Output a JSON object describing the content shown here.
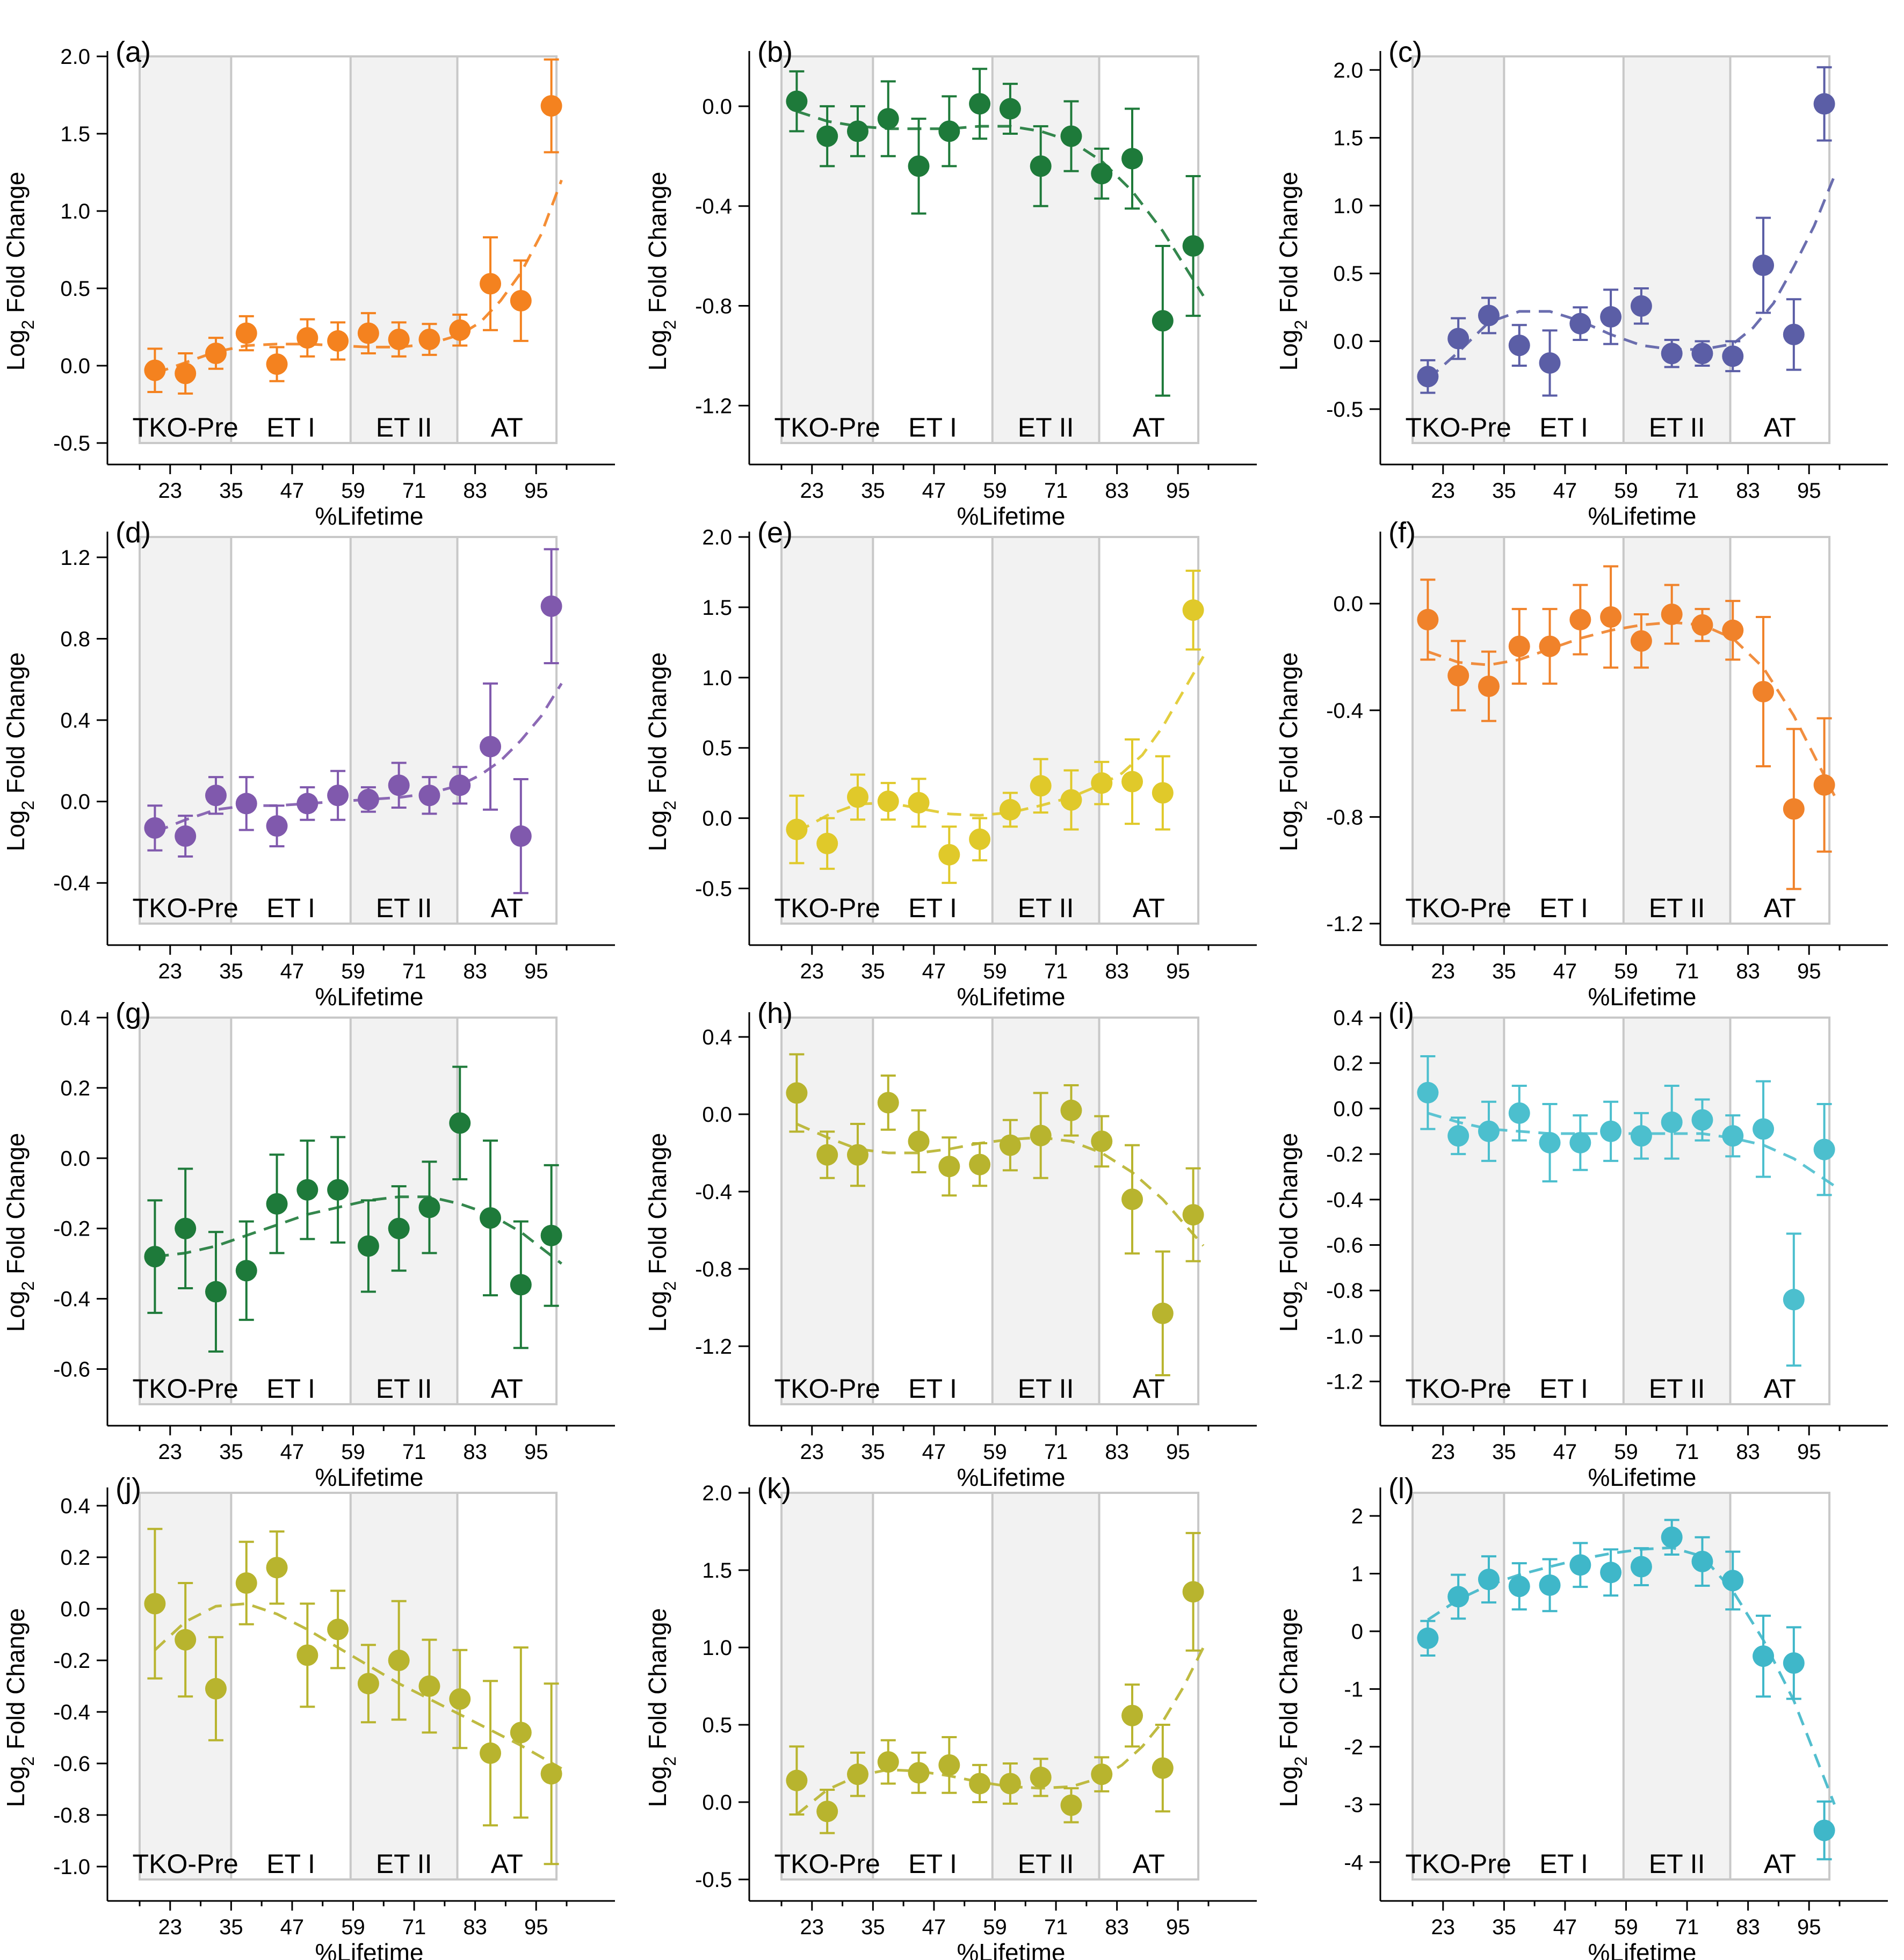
{
  "figure": {
    "x_axis_label": "%Lifetime",
    "y_axis_label_main": "Log",
    "y_axis_label_sub": "2",
    "y_axis_label_rest": " Fold Change",
    "x_ticks": [
      "23",
      "35",
      "47",
      "59",
      "71",
      "83",
      "95"
    ],
    "stage_labels": [
      "TKO-Pre",
      "ET I",
      "ET II",
      "AT"
    ],
    "shading_color": "#f2f2f2",
    "boundary_color": "#c8c8c8"
  },
  "chart_data": [
    {
      "panel": "(a)",
      "type": "scatter",
      "color": "#f4821f",
      "point_color": "#f4821f",
      "xlabel": "%Lifetime",
      "ylabel": "Log2 Fold Change",
      "ylim": [
        -0.5,
        2.0
      ],
      "yticks": [
        "-0.5",
        "0.0",
        "0.5",
        "1.0",
        "1.5",
        "2.0"
      ],
      "ytick_values": [
        -0.5,
        0,
        0.5,
        1.0,
        1.5,
        2.0
      ],
      "x": [
        20,
        26,
        32,
        38,
        44,
        50,
        56,
        62,
        68,
        74,
        80,
        86,
        92,
        98
      ],
      "y": [
        -0.03,
        -0.05,
        0.08,
        0.21,
        0.01,
        0.18,
        0.16,
        0.21,
        0.17,
        0.17,
        0.23,
        0.53,
        0.42,
        1.68
      ],
      "err": [
        0.14,
        0.13,
        0.1,
        0.11,
        0.11,
        0.12,
        0.12,
        0.13,
        0.11,
        0.1,
        0.1,
        0.3,
        0.26,
        0.3
      ],
      "fit_x": [
        20,
        26,
        32,
        38,
        44,
        50,
        56,
        62,
        68,
        74,
        80,
        84,
        88,
        92,
        96,
        100
      ],
      "fit_y": [
        -0.05,
        0.02,
        0.09,
        0.13,
        0.14,
        0.14,
        0.13,
        0.12,
        0.12,
        0.14,
        0.2,
        0.28,
        0.42,
        0.6,
        0.85,
        1.2
      ]
    },
    {
      "panel": "(b)",
      "type": "scatter",
      "color": "#1e7a3a",
      "point_color": "#1e7a3a",
      "xlabel": "%Lifetime",
      "ylabel": "Log2 Fold Change",
      "ylim": [
        -1.35,
        0.2
      ],
      "yticks": [
        "-1.2",
        "-0.8",
        "-0.4",
        "0.0"
      ],
      "ytick_values": [
        -1.2,
        -0.8,
        -0.4,
        0
      ],
      "x": [
        20,
        26,
        32,
        38,
        44,
        50,
        56,
        62,
        68,
        74,
        80,
        86,
        92,
        98
      ],
      "y": [
        0.02,
        -0.12,
        -0.1,
        -0.05,
        -0.24,
        -0.1,
        0.01,
        -0.01,
        -0.24,
        -0.12,
        -0.27,
        -0.21,
        -0.86,
        -0.56
      ],
      "err": [
        0.12,
        0.12,
        0.1,
        0.15,
        0.19,
        0.14,
        0.14,
        0.1,
        0.16,
        0.14,
        0.1,
        0.2,
        0.3,
        0.28
      ],
      "fit_x": [
        20,
        26,
        32,
        38,
        44,
        50,
        56,
        62,
        68,
        74,
        80,
        86,
        92,
        100
      ],
      "fit_y": [
        -0.02,
        -0.06,
        -0.08,
        -0.09,
        -0.09,
        -0.09,
        -0.08,
        -0.08,
        -0.1,
        -0.14,
        -0.22,
        -0.34,
        -0.5,
        -0.76
      ]
    },
    {
      "panel": "(c)",
      "type": "scatter",
      "color": "#5b5ea6",
      "point_color": "#5b5ea6",
      "xlabel": "%Lifetime",
      "ylabel": "Log2 Fold Change",
      "ylim": [
        -0.75,
        2.1
      ],
      "yticks": [
        "-0.5",
        "0.0",
        "0.5",
        "1.0",
        "1.5",
        "2.0"
      ],
      "ytick_values": [
        -0.5,
        0,
        0.5,
        1.0,
        1.5,
        2.0
      ],
      "x": [
        20,
        26,
        32,
        38,
        44,
        50,
        56,
        62,
        68,
        74,
        80,
        86,
        92,
        98
      ],
      "y": [
        -0.26,
        0.02,
        0.19,
        -0.03,
        -0.16,
        0.13,
        0.18,
        0.26,
        -0.09,
        -0.09,
        -0.11,
        0.56,
        0.05,
        1.75
      ],
      "err": [
        0.12,
        0.15,
        0.13,
        0.15,
        0.24,
        0.12,
        0.2,
        0.13,
        0.1,
        0.09,
        0.11,
        0.35,
        0.26,
        0.27
      ],
      "fit_x": [
        20,
        26,
        32,
        38,
        44,
        50,
        56,
        62,
        68,
        74,
        80,
        84,
        88,
        92,
        96,
        100
      ],
      "fit_y": [
        -0.28,
        -0.08,
        0.14,
        0.22,
        0.22,
        0.15,
        0.05,
        -0.03,
        -0.06,
        -0.06,
        -0.02,
        0.1,
        0.28,
        0.55,
        0.85,
        1.22
      ]
    },
    {
      "panel": "(d)",
      "type": "scatter",
      "color": "#8059ad",
      "point_color": "#8059ad",
      "xlabel": "%Lifetime",
      "ylabel": "Log2 Fold Change",
      "ylim": [
        -0.6,
        1.3
      ],
      "yticks": [
        "-0.4",
        "0.0",
        "0.4",
        "0.8",
        "1.2"
      ],
      "ytick_values": [
        -0.4,
        0,
        0.4,
        0.8,
        1.2
      ],
      "x": [
        20,
        26,
        32,
        38,
        44,
        50,
        56,
        62,
        68,
        74,
        80,
        86,
        92,
        98
      ],
      "y": [
        -0.13,
        -0.17,
        0.03,
        -0.01,
        -0.12,
        -0.01,
        0.03,
        0.01,
        0.08,
        0.03,
        0.08,
        0.27,
        -0.17,
        0.96
      ],
      "err": [
        0.11,
        0.1,
        0.09,
        0.13,
        0.1,
        0.08,
        0.12,
        0.06,
        0.11,
        0.09,
        0.09,
        0.31,
        0.28,
        0.28
      ],
      "fit_x": [
        20,
        26,
        32,
        38,
        44,
        50,
        56,
        62,
        68,
        74,
        80,
        84,
        88,
        92,
        96,
        100
      ],
      "fit_y": [
        -0.15,
        -0.09,
        -0.04,
        -0.02,
        -0.02,
        -0.01,
        0.0,
        0.01,
        0.02,
        0.04,
        0.08,
        0.13,
        0.2,
        0.3,
        0.42,
        0.58
      ]
    },
    {
      "panel": "(e)",
      "type": "scatter",
      "color": "#e0c92a",
      "point_color": "#e0c92a",
      "xlabel": "%Lifetime",
      "ylabel": "Log2 Fold Change",
      "ylim": [
        -0.75,
        2.0
      ],
      "yticks": [
        "-0.5",
        "0.0",
        "0.5",
        "1.0",
        "1.5",
        "2.0"
      ],
      "ytick_values": [
        -0.5,
        0,
        0.5,
        1.0,
        1.5,
        2.0
      ],
      "x": [
        20,
        26,
        32,
        38,
        44,
        50,
        56,
        62,
        68,
        74,
        80,
        86,
        92,
        98
      ],
      "y": [
        -0.08,
        -0.18,
        0.15,
        0.12,
        0.11,
        -0.26,
        -0.15,
        0.06,
        0.23,
        0.13,
        0.25,
        0.26,
        0.18,
        1.48
      ],
      "err": [
        0.24,
        0.18,
        0.16,
        0.13,
        0.17,
        0.2,
        0.15,
        0.12,
        0.19,
        0.21,
        0.15,
        0.3,
        0.26,
        0.28
      ],
      "fit_x": [
        20,
        26,
        32,
        38,
        44,
        50,
        56,
        62,
        68,
        74,
        80,
        84,
        88,
        92,
        96,
        100
      ],
      "fit_y": [
        -0.1,
        0.02,
        0.1,
        0.11,
        0.07,
        0.03,
        0.02,
        0.04,
        0.09,
        0.15,
        0.24,
        0.32,
        0.45,
        0.65,
        0.9,
        1.15
      ]
    },
    {
      "panel": "(f)",
      "type": "scatter",
      "color": "#f0822a",
      "point_color": "#f0822a",
      "xlabel": "%Lifetime",
      "ylabel": "Log2 Fold Change",
      "ylim": [
        -1.2,
        0.25
      ],
      "yticks": [
        "-1.2",
        "-0.8",
        "-0.4",
        "0.0"
      ],
      "ytick_values": [
        -1.2,
        -0.8,
        -0.4,
        0
      ],
      "x": [
        20,
        26,
        32,
        38,
        44,
        50,
        56,
        62,
        68,
        74,
        80,
        86,
        92,
        98
      ],
      "y": [
        -0.06,
        -0.27,
        -0.31,
        -0.16,
        -0.16,
        -0.06,
        -0.05,
        -0.14,
        -0.04,
        -0.08,
        -0.1,
        -0.33,
        -0.77,
        -0.68
      ],
      "err": [
        0.15,
        0.13,
        0.13,
        0.14,
        0.14,
        0.13,
        0.19,
        0.1,
        0.11,
        0.06,
        0.11,
        0.28,
        0.3,
        0.25
      ],
      "fit_x": [
        20,
        26,
        32,
        38,
        44,
        50,
        56,
        62,
        68,
        74,
        80,
        86,
        92,
        100
      ],
      "fit_y": [
        -0.18,
        -0.22,
        -0.23,
        -0.21,
        -0.17,
        -0.13,
        -0.1,
        -0.08,
        -0.07,
        -0.08,
        -0.13,
        -0.24,
        -0.42,
        -0.72
      ]
    },
    {
      "panel": "(g)",
      "type": "scatter",
      "color": "#1e7a3a",
      "point_color": "#1e7a3a",
      "xlabel": "%Lifetime",
      "ylabel": "Log2 Fold Change",
      "ylim": [
        -0.7,
        0.4
      ],
      "yticks": [
        "-0.6",
        "-0.4",
        "-0.2",
        "0.0",
        "0.2",
        "0.4"
      ],
      "ytick_values": [
        -0.6,
        -0.4,
        -0.2,
        0,
        0.2,
        0.4
      ],
      "x": [
        20,
        26,
        32,
        38,
        44,
        50,
        56,
        62,
        68,
        74,
        80,
        86,
        92,
        98
      ],
      "y": [
        -0.28,
        -0.2,
        -0.38,
        -0.32,
        -0.13,
        -0.09,
        -0.09,
        -0.25,
        -0.2,
        -0.14,
        0.1,
        -0.17,
        -0.36,
        -0.22
      ],
      "err": [
        0.16,
        0.17,
        0.17,
        0.14,
        0.14,
        0.14,
        0.15,
        0.13,
        0.12,
        0.13,
        0.16,
        0.22,
        0.18,
        0.2
      ],
      "fit_x": [
        20,
        26,
        32,
        38,
        44,
        50,
        56,
        62,
        68,
        74,
        80,
        86,
        92,
        100
      ],
      "fit_y": [
        -0.28,
        -0.27,
        -0.25,
        -0.22,
        -0.19,
        -0.16,
        -0.14,
        -0.12,
        -0.11,
        -0.11,
        -0.13,
        -0.16,
        -0.21,
        -0.3
      ]
    },
    {
      "panel": "(h)",
      "type": "scatter",
      "color": "#b8b42e",
      "point_color": "#b8b42e",
      "xlabel": "%Lifetime",
      "ylabel": "Log2 Fold Change",
      "ylim": [
        -1.5,
        0.5
      ],
      "yticks": [
        "-1.2",
        "-0.8",
        "-0.4",
        "0.0",
        "0.4"
      ],
      "ytick_values": [
        -1.2,
        -0.8,
        -0.4,
        0,
        0.4
      ],
      "x": [
        20,
        26,
        32,
        38,
        44,
        50,
        56,
        62,
        68,
        74,
        80,
        86,
        92,
        98
      ],
      "y": [
        0.11,
        -0.21,
        -0.21,
        0.06,
        -0.14,
        -0.27,
        -0.26,
        -0.16,
        -0.11,
        0.02,
        -0.14,
        -0.44,
        -1.03,
        -0.52
      ],
      "err": [
        0.2,
        0.12,
        0.16,
        0.14,
        0.16,
        0.15,
        0.11,
        0.13,
        0.22,
        0.13,
        0.13,
        0.28,
        0.32,
        0.24
      ],
      "fit_x": [
        20,
        26,
        32,
        38,
        44,
        50,
        56,
        62,
        68,
        74,
        80,
        86,
        92,
        100
      ],
      "fit_y": [
        -0.05,
        -0.12,
        -0.18,
        -0.2,
        -0.2,
        -0.18,
        -0.15,
        -0.13,
        -0.12,
        -0.14,
        -0.2,
        -0.3,
        -0.44,
        -0.68
      ]
    },
    {
      "panel": "(i)",
      "type": "scatter",
      "color": "#4cbfce",
      "point_color": "#4cbfce",
      "xlabel": "%Lifetime",
      "ylabel": "Log2 Fold Change",
      "ylim": [
        -1.3,
        0.4
      ],
      "yticks": [
        "-1.2",
        "-1.0",
        "-0.8",
        "-0.6",
        "-0.4",
        "-0.2",
        "0.0",
        "0.2",
        "0.4"
      ],
      "ytick_values": [
        -1.2,
        -1.0,
        -0.8,
        -0.6,
        -0.4,
        -0.2,
        0,
        0.2,
        0.4
      ],
      "x": [
        20,
        26,
        32,
        38,
        44,
        50,
        56,
        62,
        68,
        74,
        80,
        86,
        92,
        98
      ],
      "y": [
        0.07,
        -0.12,
        -0.1,
        -0.02,
        -0.15,
        -0.15,
        -0.1,
        -0.12,
        -0.06,
        -0.05,
        -0.12,
        -0.09,
        -0.84,
        -0.18
      ],
      "err": [
        0.16,
        0.08,
        0.13,
        0.12,
        0.17,
        0.12,
        0.13,
        0.1,
        0.16,
        0.09,
        0.09,
        0.21,
        0.29,
        0.2
      ],
      "fit_x": [
        20,
        26,
        32,
        38,
        44,
        50,
        56,
        62,
        68,
        74,
        80,
        86,
        92,
        100
      ],
      "fit_y": [
        -0.02,
        -0.06,
        -0.09,
        -0.1,
        -0.11,
        -0.11,
        -0.11,
        -0.11,
        -0.11,
        -0.11,
        -0.13,
        -0.16,
        -0.22,
        -0.34
      ]
    },
    {
      "panel": "(j)",
      "type": "scatter",
      "color": "#b8b42e",
      "point_color": "#b8b42e",
      "xlabel": "%Lifetime",
      "ylabel": "Log2 Fold Change",
      "ylim": [
        -1.05,
        0.45
      ],
      "yticks": [
        "-1.0",
        "-0.8",
        "-0.6",
        "-0.4",
        "-0.2",
        "0.0",
        "0.2",
        "0.4"
      ],
      "ytick_values": [
        -1.0,
        -0.8,
        -0.6,
        -0.4,
        -0.2,
        0,
        0.2,
        0.4
      ],
      "x": [
        20,
        26,
        32,
        38,
        44,
        50,
        56,
        62,
        68,
        74,
        80,
        86,
        92,
        98
      ],
      "y": [
        0.02,
        -0.12,
        -0.31,
        0.1,
        0.16,
        -0.18,
        -0.08,
        -0.29,
        -0.2,
        -0.3,
        -0.35,
        -0.56,
        -0.48,
        -0.64
      ],
      "err": [
        0.29,
        0.22,
        0.2,
        0.16,
        0.14,
        0.2,
        0.15,
        0.15,
        0.23,
        0.18,
        0.19,
        0.28,
        0.33,
        0.35
      ],
      "fit_x": [
        20,
        26,
        32,
        38,
        44,
        50,
        56,
        62,
        68,
        74,
        80,
        86,
        92,
        100
      ],
      "fit_y": [
        -0.16,
        -0.05,
        0.01,
        0.02,
        -0.02,
        -0.08,
        -0.15,
        -0.22,
        -0.29,
        -0.35,
        -0.41,
        -0.47,
        -0.53,
        -0.62
      ]
    },
    {
      "panel": "(k)",
      "type": "scatter",
      "color": "#b8b42e",
      "point_color": "#b8b42e",
      "xlabel": "%Lifetime",
      "ylabel": "Log2 Fold Change",
      "ylim": [
        -0.5,
        2.0
      ],
      "yticks": [
        "-0.5",
        "0.0",
        "0.5",
        "1.0",
        "1.5",
        "2.0"
      ],
      "ytick_values": [
        -0.5,
        0,
        0.5,
        1.0,
        1.5,
        2.0
      ],
      "x": [
        20,
        26,
        32,
        38,
        44,
        50,
        56,
        62,
        68,
        74,
        80,
        86,
        92,
        98
      ],
      "y": [
        0.14,
        -0.06,
        0.18,
        0.26,
        0.19,
        0.24,
        0.12,
        0.12,
        0.16,
        -0.02,
        0.18,
        0.56,
        0.22,
        1.36
      ],
      "err": [
        0.22,
        0.14,
        0.14,
        0.14,
        0.13,
        0.18,
        0.12,
        0.13,
        0.12,
        0.11,
        0.11,
        0.2,
        0.28,
        0.38
      ],
      "fit_x": [
        20,
        26,
        32,
        38,
        44,
        50,
        56,
        62,
        68,
        74,
        80,
        84,
        88,
        92,
        96,
        100
      ],
      "fit_y": [
        -0.08,
        0.08,
        0.17,
        0.21,
        0.2,
        0.17,
        0.13,
        0.1,
        0.09,
        0.1,
        0.16,
        0.24,
        0.36,
        0.52,
        0.74,
        1.0
      ]
    },
    {
      "panel": "(l)",
      "type": "scatter",
      "color": "#3fb7c9",
      "point_color": "#3fb7c9",
      "xlabel": "%Lifetime",
      "ylabel": "Log2 Fold Change",
      "ylim": [
        -4.3,
        2.4
      ],
      "yticks": [
        "-4",
        "-3",
        "-2",
        "-1",
        "0",
        "1",
        "2"
      ],
      "ytick_values": [
        -4,
        -3,
        -2,
        -1,
        0,
        1,
        2
      ],
      "x": [
        20,
        26,
        32,
        38,
        44,
        50,
        56,
        62,
        68,
        74,
        80,
        86,
        92,
        98
      ],
      "y": [
        -0.12,
        0.6,
        0.9,
        0.78,
        0.8,
        1.15,
        1.02,
        1.12,
        1.63,
        1.21,
        0.88,
        -0.43,
        -0.55,
        -3.45
      ],
      "err": [
        0.3,
        0.38,
        0.4,
        0.4,
        0.45,
        0.38,
        0.4,
        0.32,
        0.3,
        0.42,
        0.5,
        0.7,
        0.62,
        0.5
      ],
      "fit_x": [
        20,
        26,
        32,
        38,
        44,
        50,
        56,
        62,
        68,
        74,
        80,
        86,
        92,
        96,
        100
      ],
      "fit_y": [
        0.2,
        0.55,
        0.8,
        0.98,
        1.12,
        1.25,
        1.35,
        1.42,
        1.45,
        1.3,
        0.7,
        -0.15,
        -1.2,
        -2.1,
        -3.0
      ]
    }
  ]
}
